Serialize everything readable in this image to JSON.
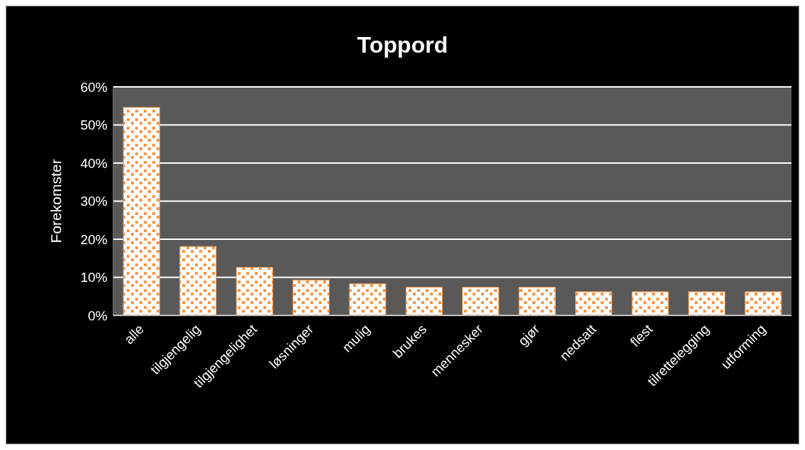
{
  "chart_data": {
    "type": "bar",
    "title": "Toppord",
    "ylabel": "Forekomster",
    "categories": [
      "alle",
      "tilgjengelig",
      "tilgjengelighet",
      "løsninger",
      "mulig",
      "brukes",
      "mennesker",
      "gjør",
      "nedsatt",
      "flest",
      "tilrettelegging",
      "utforming"
    ],
    "values": [
      54.6,
      18.1,
      12.6,
      9.3,
      8.3,
      7.4,
      7.4,
      7.4,
      6.2,
      6.2,
      6.2,
      6.2
    ],
    "color": "#f79646",
    "ylim": [
      0,
      60
    ],
    "yticks": [
      {
        "value": 0,
        "label": "0%"
      },
      {
        "value": 10,
        "label": "10%"
      },
      {
        "value": 20,
        "label": "20%"
      },
      {
        "value": 30,
        "label": "30%"
      },
      {
        "value": 40,
        "label": "40%"
      },
      {
        "value": 50,
        "label": "50%"
      },
      {
        "value": 60,
        "label": "60%"
      }
    ],
    "grid": "y",
    "legend": false
  }
}
